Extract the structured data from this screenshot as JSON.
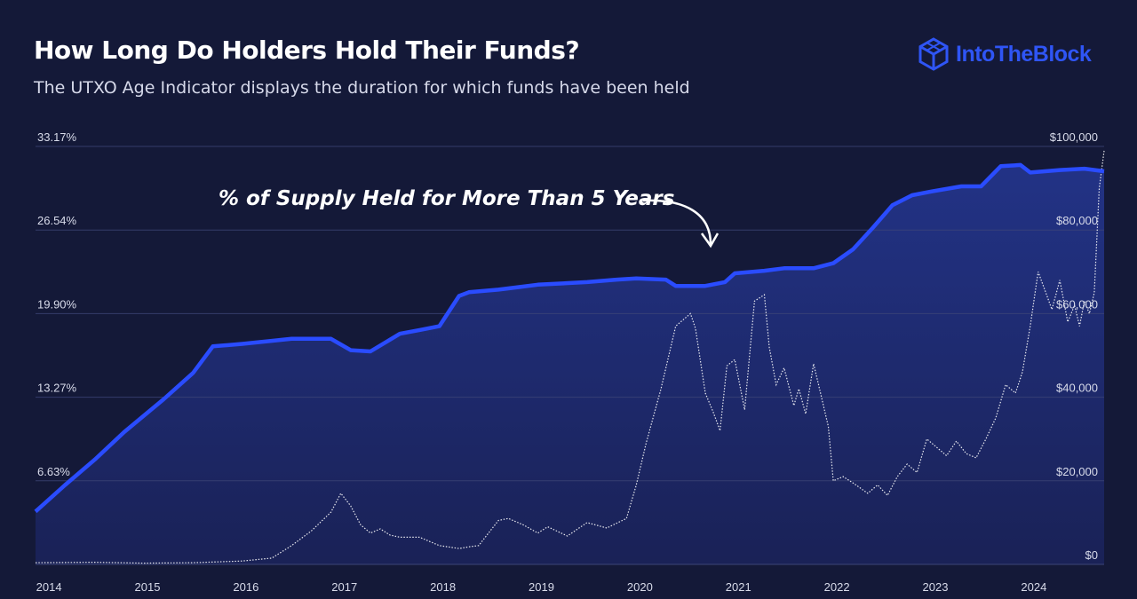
{
  "header": {
    "title": "How Long Do Holders Hold Their Funds?",
    "subtitle": "The UTXO Age Indicator displays the duration for which funds have been held"
  },
  "brand": {
    "name": "IntoTheBlock",
    "icon": "cube-logo-icon",
    "color": "#2f55f5"
  },
  "colors": {
    "background": "#141938",
    "series_line": "#2a4cff",
    "area_fill": "#1f2f78",
    "price_line": "#ffffff",
    "grid": "#3a4170"
  },
  "chart_data": {
    "type": "line",
    "annotation": "% of Supply Held for More Than 5 Years",
    "x_ticks": [
      "2014",
      "2015",
      "2016",
      "2017",
      "2018",
      "2019",
      "2020",
      "2021",
      "2022",
      "2023",
      "2024"
    ],
    "y_left_ticks": [
      "33.17%",
      "26.54%",
      "19.90%",
      "13.27%",
      "6.63%"
    ],
    "y_right_ticks": [
      "$100,000",
      "$80,000",
      "$60,000",
      "$40,000",
      "$20,000",
      "$0"
    ],
    "xlim": [
      2013.9,
      2024.75
    ],
    "y_left_lim": [
      0,
      33.17
    ],
    "y_right_lim": [
      0,
      100000
    ],
    "grid": "horizontal",
    "series": [
      {
        "axis": "left",
        "style": "solid-area",
        "x": [
          2013.9,
          2014.2,
          2014.5,
          2014.8,
          2015.0,
          2015.2,
          2015.5,
          2015.7,
          2016.0,
          2016.5,
          2016.9,
          2017.1,
          2017.3,
          2017.6,
          2017.8,
          2018.0,
          2018.2,
          2018.3,
          2018.6,
          2018.8,
          2019.0,
          2019.5,
          2019.8,
          2020.0,
          2020.3,
          2020.4,
          2020.7,
          2020.9,
          2021.0,
          2021.3,
          2021.5,
          2021.8,
          2022.0,
          2022.2,
          2022.4,
          2022.6,
          2022.8,
          2023.0,
          2023.3,
          2023.5,
          2023.7,
          2023.9,
          2024.0,
          2024.3,
          2024.55,
          2024.75
        ],
        "y": [
          4.2,
          6.3,
          8.3,
          10.5,
          11.8,
          13.1,
          15.2,
          17.3,
          17.5,
          17.9,
          17.9,
          17.0,
          16.9,
          18.3,
          18.6,
          18.9,
          21.3,
          21.6,
          21.8,
          22.0,
          22.2,
          22.4,
          22.6,
          22.7,
          22.6,
          22.1,
          22.1,
          22.4,
          23.1,
          23.3,
          23.5,
          23.5,
          23.9,
          25.0,
          26.7,
          28.5,
          29.3,
          29.6,
          30.0,
          30.0,
          31.6,
          31.7,
          31.1,
          31.3,
          31.4,
          31.2
        ]
      },
      {
        "axis": "right",
        "style": "dotted",
        "x": [
          2013.9,
          2014.5,
          2015.0,
          2015.5,
          2016.0,
          2016.3,
          2016.5,
          2016.7,
          2016.9,
          2017.0,
          2017.1,
          2017.2,
          2017.3,
          2017.4,
          2017.5,
          2017.6,
          2017.8,
          2018.0,
          2018.2,
          2018.3,
          2018.4,
          2018.6,
          2018.7,
          2018.85,
          2019.0,
          2019.1,
          2019.3,
          2019.5,
          2019.7,
          2019.9,
          2020.0,
          2020.1,
          2020.25,
          2020.4,
          2020.55,
          2020.6,
          2020.7,
          2020.78,
          2020.85,
          2020.92,
          2021.0,
          2021.1,
          2021.2,
          2021.3,
          2021.35,
          2021.42,
          2021.5,
          2021.6,
          2021.65,
          2021.72,
          2021.8,
          2021.85,
          2021.95,
          2022.0,
          2022.1,
          2022.2,
          2022.35,
          2022.45,
          2022.55,
          2022.65,
          2022.75,
          2022.85,
          2022.95,
          2023.05,
          2023.15,
          2023.25,
          2023.35,
          2023.45,
          2023.55,
          2023.65,
          2023.75,
          2023.85,
          2023.92,
          2024.0,
          2024.08,
          2024.15,
          2024.22,
          2024.3,
          2024.38,
          2024.45,
          2024.5,
          2024.55,
          2024.6,
          2024.65,
          2024.7,
          2024.75
        ],
        "y": [
          400,
          500,
          300,
          400,
          800,
          1500,
          4500,
          8000,
          12500,
          17000,
          14000,
          9500,
          7500,
          8500,
          7000,
          6500,
          6500,
          4500,
          3800,
          4200,
          4500,
          10500,
          11000,
          9500,
          7500,
          9000,
          6800,
          10000,
          8700,
          11000,
          19000,
          29000,
          42000,
          57000,
          60000,
          56500,
          41000,
          36500,
          32000,
          47500,
          49000,
          37000,
          63000,
          64500,
          52000,
          43000,
          47000,
          38000,
          42000,
          36000,
          48000,
          43000,
          33000,
          20000,
          21000,
          19500,
          17000,
          19000,
          16500,
          21000,
          24000,
          22000,
          30000,
          28000,
          26000,
          29500,
          26500,
          25500,
          30000,
          35000,
          43000,
          41000,
          46000,
          57000,
          70000,
          65500,
          61000,
          68000,
          58000,
          62000,
          57000,
          63000,
          60000,
          65000,
          90000,
          99000
        ]
      }
    ]
  }
}
